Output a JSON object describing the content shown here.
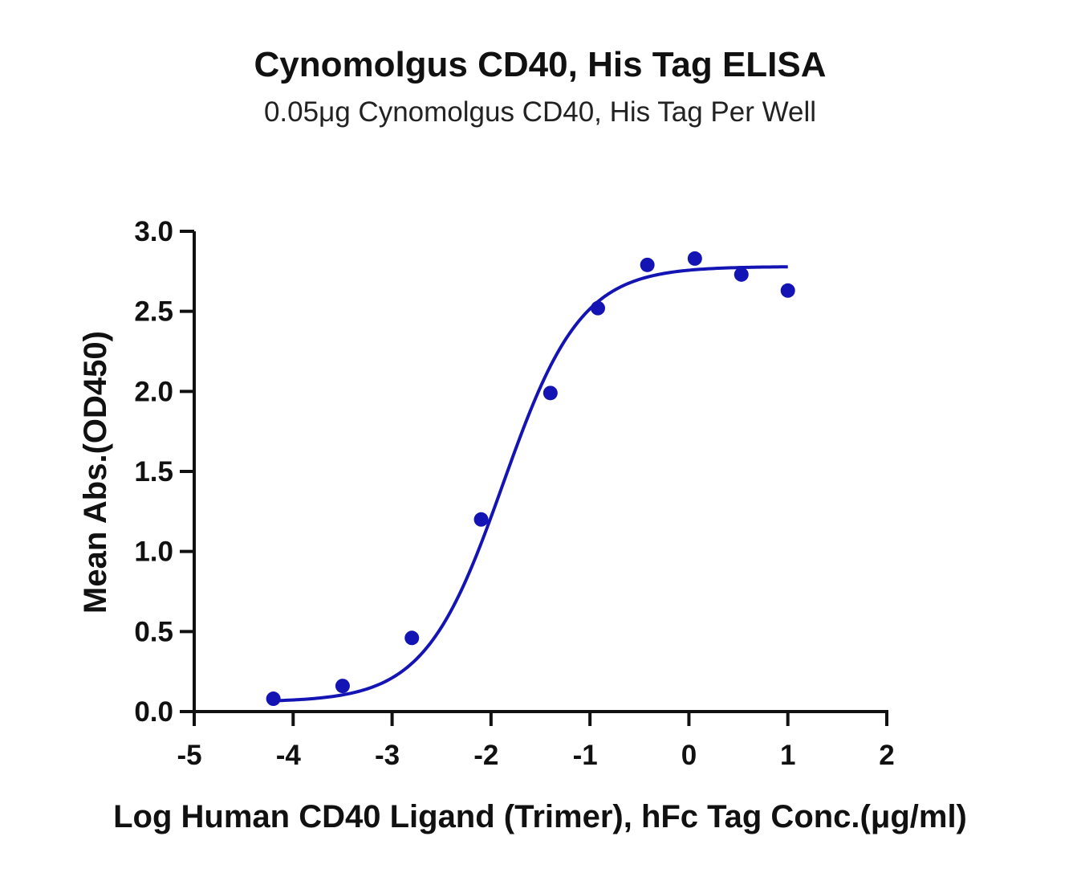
{
  "chart_data": {
    "type": "scatter",
    "title": "Cynomolgus CD40, His Tag ELISA",
    "subtitle": "0.05μg Cynomolgus CD40, His Tag Per Well",
    "xlabel": "Log Human CD40 Ligand (Trimer), hFc Tag Conc.(μg/ml)",
    "ylabel": "Mean Abs.(OD450)",
    "xlim": [
      -5,
      2
    ],
    "ylim": [
      0,
      3
    ],
    "x_ticks": [
      "-5",
      "-4",
      "-3",
      "-2",
      "-1",
      "0",
      "1",
      "2"
    ],
    "y_ticks": [
      "0.0",
      "0.5",
      "1.0",
      "1.5",
      "2.0",
      "2.5",
      "3.0"
    ],
    "grid": false,
    "legend": "none",
    "series": [
      {
        "color": "#1414b4",
        "points": [
          {
            "x": -4.2,
            "y": 0.08
          },
          {
            "x": -3.5,
            "y": 0.16
          },
          {
            "x": -2.8,
            "y": 0.46
          },
          {
            "x": -2.1,
            "y": 1.2
          },
          {
            "x": -1.4,
            "y": 1.99
          },
          {
            "x": -0.92,
            "y": 2.52
          },
          {
            "x": -0.42,
            "y": 2.79
          },
          {
            "x": 0.06,
            "y": 2.83
          },
          {
            "x": 0.53,
            "y": 2.73
          },
          {
            "x": 1.0,
            "y": 2.63
          }
        ],
        "fit": {
          "model": "4PL",
          "bottom": 0.06,
          "top": 2.78,
          "log_ec50": -1.88,
          "hill_slope": 1.1,
          "x_range": [
            -4.2,
            1.0
          ]
        }
      }
    ]
  }
}
